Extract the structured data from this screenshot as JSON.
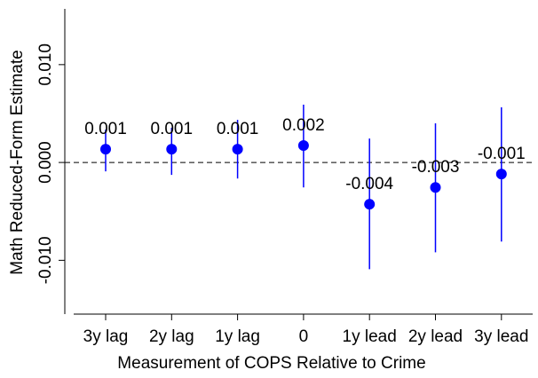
{
  "chart_data": {
    "type": "errorbar",
    "x_label": "Measurement of COPS Relative to Crime",
    "y_label": "Math Reduced-Form Estimate",
    "categories": [
      "3y lag",
      "2y lag",
      "1y lag",
      "0",
      "1y lead",
      "2y lead",
      "3y lead"
    ],
    "values": [
      0.00136,
      0.00136,
      0.00136,
      0.00173,
      -0.00427,
      -0.00255,
      -0.00118
    ],
    "value_labels": [
      "0.001",
      "0.001",
      "0.001",
      "0.002",
      "-0.004",
      "-0.003",
      "-0.001"
    ],
    "ci_lower": [
      -0.00091,
      -0.00127,
      -0.00164,
      -0.00255,
      -0.01091,
      -0.00918,
      -0.00809
    ],
    "ci_upper": [
      0.00336,
      0.00355,
      0.00436,
      0.00591,
      0.00245,
      0.004,
      0.00564
    ],
    "color": "#0000ff",
    "reference_line": 0,
    "ylim": [
      -0.0155,
      0.0157
    ],
    "yticks": [
      {
        "value": -0.01,
        "label": "-0.010"
      },
      {
        "value": 0,
        "label": "0.000"
      },
      {
        "value": 0.01,
        "label": "0.010"
      }
    ]
  }
}
